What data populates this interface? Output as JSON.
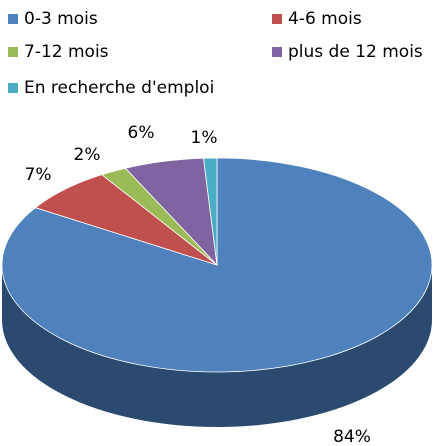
{
  "chart_data": {
    "type": "pie",
    "categories": [
      "0-3 mois",
      "4-6 mois",
      "7-12 mois",
      "plus de 12 mois",
      "En recherche d'emploi"
    ],
    "values": [
      84,
      7,
      2,
      6,
      1
    ],
    "value_labels": [
      "84%",
      "7%",
      "2%",
      "6%",
      "1%"
    ],
    "colors": [
      "#4f81bd",
      "#c0504d",
      "#9bbb59",
      "#8064a2",
      "#4bacc6"
    ]
  }
}
